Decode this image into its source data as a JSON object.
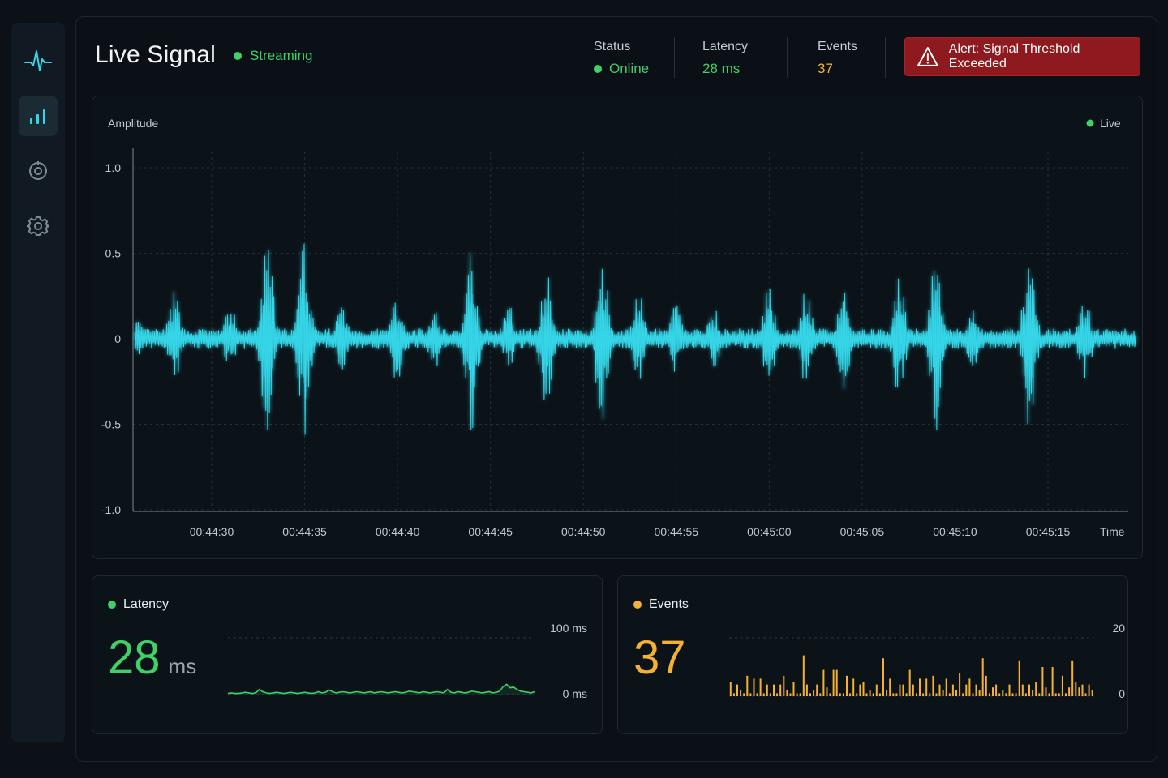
{
  "sidebar": {
    "items": [
      {
        "icon": "pulse-icon",
        "active": false
      },
      {
        "icon": "bar-chart-icon",
        "active": true
      },
      {
        "icon": "target-icon",
        "active": false
      },
      {
        "icon": "gear-icon",
        "active": false
      }
    ]
  },
  "header": {
    "title": "Live Signal",
    "streaming_label": "Streaming",
    "stats": [
      {
        "label": "Status",
        "value": "Online",
        "color": "#3fd06a",
        "dot": true
      },
      {
        "label": "Latency",
        "value": "28 ms",
        "color": "#3fd06a",
        "dot": false
      },
      {
        "label": "Events",
        "value": "37",
        "color": "#f5b133",
        "dot": false
      }
    ],
    "alert": {
      "prefix": "Alert:",
      "text": "Signal Threshold Exceeded",
      "icon": "warning-triangle-icon",
      "color": "#8e1a1f"
    }
  },
  "chart_data": [
    {
      "type": "line",
      "ylabel": "Amplitude",
      "xlabel": "Time",
      "legend": "Live",
      "legend_placement": "top-right",
      "yticks": [
        "1.0",
        "0.5",
        "0",
        "-0.5",
        "-1.0"
      ],
      "ylim": [
        -1.0,
        1.0
      ],
      "xticks": [
        "00:44:30",
        "00:44:35",
        "00:44:40",
        "00:44:45",
        "00:44:50",
        "00:44:55",
        "00:45:00",
        "00:45:05",
        "00:45:10",
        "00:45:15"
      ],
      "grid": true,
      "color": "#35d6e8",
      "bursts": [
        {
          "t": "00:44:26",
          "amp": 0.12
        },
        {
          "t": "00:44:28",
          "amp": 0.28
        },
        {
          "t": "00:44:31",
          "amp": 0.2
        },
        {
          "t": "00:44:33",
          "amp": 0.58
        },
        {
          "t": "00:44:35",
          "amp": 0.58
        },
        {
          "t": "00:44:37",
          "amp": 0.2
        },
        {
          "t": "00:44:40",
          "amp": 0.28
        },
        {
          "t": "00:44:42",
          "amp": 0.18
        },
        {
          "t": "00:44:44",
          "amp": 0.56
        },
        {
          "t": "00:44:46",
          "amp": 0.2
        },
        {
          "t": "00:44:48",
          "amp": 0.42
        },
        {
          "t": "00:44:51",
          "amp": 0.52
        },
        {
          "t": "00:44:53",
          "amp": 0.28
        },
        {
          "t": "00:44:55",
          "amp": 0.22
        },
        {
          "t": "00:44:57",
          "amp": 0.2
        },
        {
          "t": "00:45:00",
          "amp": 0.36
        },
        {
          "t": "00:45:02",
          "amp": 0.3
        },
        {
          "t": "00:45:04",
          "amp": 0.32
        },
        {
          "t": "00:45:07",
          "amp": 0.36
        },
        {
          "t": "00:45:09",
          "amp": 0.58
        },
        {
          "t": "00:45:11",
          "amp": 0.2
        },
        {
          "t": "00:45:14",
          "amp": 0.55
        },
        {
          "t": "00:45:17",
          "amp": 0.26
        }
      ]
    },
    {
      "type": "area",
      "title": "Latency",
      "ylim": [
        0,
        100
      ],
      "ytick_labels": [
        "100 ms",
        "0 ms"
      ],
      "color": "#3fd06a",
      "values": [
        2,
        3,
        2,
        2,
        3,
        4,
        3,
        2,
        3,
        9,
        5,
        3,
        2,
        3,
        4,
        3,
        2,
        3,
        4,
        3,
        2,
        3,
        4,
        3,
        2,
        3,
        5,
        3,
        4,
        8,
        5,
        3,
        4,
        5,
        4,
        3,
        4,
        5,
        4,
        3,
        4,
        5,
        3,
        4,
        5,
        4,
        3,
        4,
        5,
        4,
        3,
        4,
        6,
        5,
        4,
        3,
        5,
        4,
        3,
        4,
        5,
        4,
        3,
        9,
        4,
        3,
        5,
        4,
        3,
        4,
        6,
        5,
        4,
        3,
        4,
        5,
        3,
        4,
        6,
        14,
        18,
        12,
        13,
        9,
        6,
        5,
        4,
        3,
        5
      ]
    },
    {
      "type": "bar",
      "title": "Events",
      "ylim": [
        0,
        20
      ],
      "ytick_labels": [
        "20",
        "0"
      ],
      "color": "#f5b133",
      "values": [
        5,
        1,
        4,
        2,
        1,
        7,
        1,
        6,
        1,
        6,
        1,
        4,
        1,
        4,
        1,
        4,
        7,
        2,
        1,
        5,
        1,
        1,
        14,
        4,
        1,
        2,
        4,
        1,
        9,
        3,
        1,
        9,
        9,
        1,
        1,
        7,
        1,
        6,
        1,
        4,
        5,
        1,
        2,
        1,
        4,
        1,
        13,
        2,
        6,
        1,
        1,
        4,
        4,
        1,
        9,
        4,
        1,
        6,
        1,
        6,
        1,
        7,
        1,
        4,
        2,
        6,
        1,
        4,
        2,
        8,
        1,
        4,
        6,
        1,
        4,
        2,
        13,
        7,
        1,
        3,
        4,
        1,
        2,
        1,
        4,
        1,
        1,
        12,
        4,
        1,
        4,
        2,
        5,
        1,
        10,
        3,
        1,
        10,
        1,
        1,
        7,
        1,
        3,
        12,
        5,
        3,
        4,
        1,
        4,
        2
      ]
    }
  ],
  "latency_panel": {
    "title": "Latency",
    "value": "28",
    "unit": "ms"
  },
  "events_panel": {
    "title": "Events",
    "value": "37"
  }
}
